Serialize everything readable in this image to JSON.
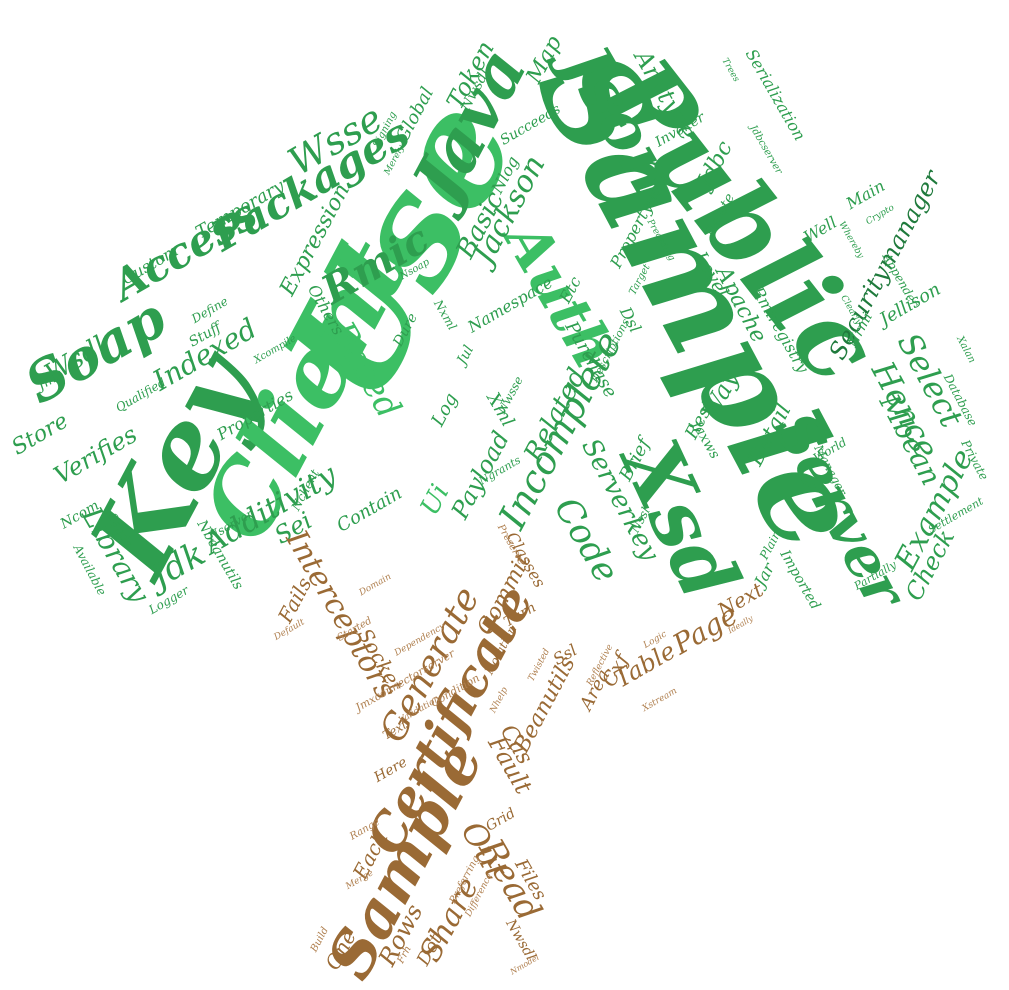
{
  "colors": {
    "leaf_green": "#2e9e4f",
    "leaf_green_light": "#3cbf64",
    "leaf_green_dark": "#1f7a3c",
    "trunk_brown": "#9a6a35",
    "trunk_brown_light": "#b08050",
    "background": "#ffffff"
  },
  "canopy_words": [
    "Use",
    "Sample",
    "Public",
    "Key",
    "Client",
    "Json",
    "Xsd",
    "Java",
    "Auth",
    "Server",
    "Soap",
    "Access",
    "Packages",
    "Rmic",
    "Incomplete",
    "Example",
    "Code",
    "Select",
    "Hence",
    "Based",
    "Securitymanager",
    "Wsse",
    "Jackson",
    "Basic",
    "Related",
    "Serverkey",
    "Indexed",
    "Library",
    "Jdk",
    "Additivity",
    "Store",
    "Verifies",
    "Wsdl",
    "Anytype",
    "Token",
    "Map",
    "Global",
    "Temporary",
    "Expression",
    "Custom",
    "Properties",
    "Others",
    "Dure",
    "Payload",
    "Xml",
    "Log",
    "Ui",
    "Sei",
    "Contain",
    "Mbean",
    "Detail",
    "Check",
    "Imported",
    "Manager",
    "Jellison",
    "Main",
    "Well",
    "Delete",
    "Level",
    "Apache",
    "Rmiregistry",
    "Purchase",
    "Rest",
    "Way",
    "Brief",
    "Jar",
    "Jaxws",
    "Jdbc",
    "Serialization",
    "Succeeds",
    "Invoker",
    "Propertyutils",
    "Etc",
    "Namespace",
    "Define",
    "Stuff",
    "Qualified",
    "Jmx",
    "Ncom",
    "Sends",
    "Available",
    "Logger",
    "Nbeanutils",
    "Nxml",
    "Jul",
    "Nlog",
    "Nrmi",
    "Appender",
    "Database",
    "Private",
    "World",
    "Settlement",
    "Partially",
    "Plain",
    "Xalan",
    "Signing",
    "Merely",
    "Preceding",
    "Descriptions",
    "Xcompile",
    "Jdbcserver",
    "Trees",
    "Whereby",
    "Clearly",
    "Crypto",
    "Dsl",
    "Nwsdl",
    "Nsoap",
    "Nwsse",
    "Nssl",
    "Target",
    "Nserver",
    "Nclient",
    "Ngrants"
  ],
  "trunk_words": [
    "Sample",
    "Certificate",
    "Generate",
    "Interceptors",
    "Page",
    "Table",
    "Read",
    "Out",
    "Fault",
    "Share",
    "Beanutils",
    "Commit",
    "Classes",
    "Socket",
    "Fails",
    "Cas",
    "Area",
    "Cxf",
    "Next",
    "Turn",
    "Notation",
    "Ssl",
    "Files",
    "Rows",
    "Each",
    "One",
    "Dot",
    "Nwsdl",
    "Grid",
    "Here",
    "Text",
    "Build",
    "Condition",
    "Preserve",
    "Started",
    "Default",
    "Domain",
    "Twisted",
    "Dependency",
    "Jmxconnectorserver",
    "Validation",
    "Range",
    "Xstream",
    "Reflective",
    "Ideally",
    "Logic",
    "Nhelp",
    "Merge",
    "Preferring",
    "Difference",
    "Frh",
    "Nmodel"
  ]
}
